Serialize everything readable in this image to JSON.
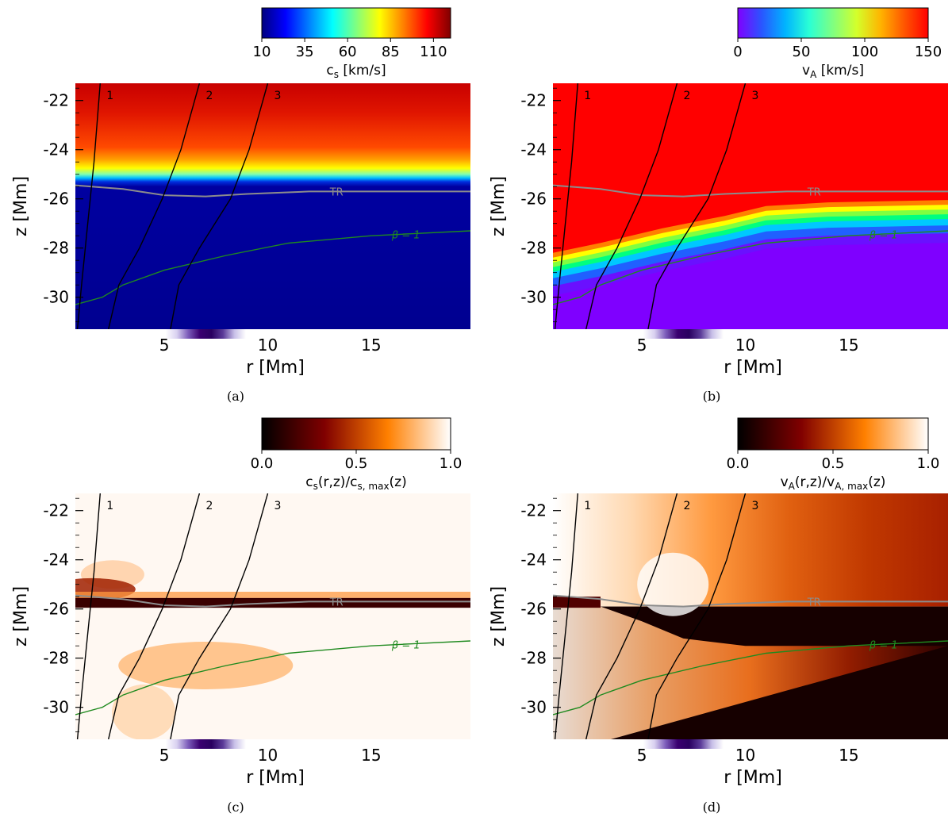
{
  "figure": {
    "panels": [
      {
        "id": "a",
        "caption": "(a)",
        "colorbar": {
          "label_main": "c",
          "label_sub": "s",
          "label_rest": " [km/s]",
          "ticks": [
            "10",
            "35",
            "60",
            "85",
            "110"
          ],
          "colormap": "jet"
        },
        "map": "cs"
      },
      {
        "id": "b",
        "caption": "(b)",
        "colorbar": {
          "label_main": "v",
          "label_sub": "A",
          "label_rest": " [km/s]",
          "ticks": [
            "0",
            "50",
            "100",
            "150"
          ],
          "colormap": "rainbow"
        },
        "map": "vA"
      },
      {
        "id": "c",
        "caption": "(c)",
        "colorbar": {
          "label_main": "c",
          "label_sub": "s",
          "label_rest": "(r,z)/c",
          "label_sub2": "s, max",
          "label_rest2": "(z)",
          "ticks": [
            "0.0",
            "0.5",
            "1.0"
          ],
          "colormap": "gist_heat"
        },
        "map": "cs_norm"
      },
      {
        "id": "d",
        "caption": "(d)",
        "colorbar": {
          "label_main": "v",
          "label_sub": "A",
          "label_rest": "(r,z)/v",
          "label_sub2": "A, max",
          "label_rest2": "(z)",
          "ticks": [
            "0.0",
            "0.5",
            "1.0"
          ],
          "colormap": "gist_heat"
        },
        "map": "vA_norm"
      }
    ],
    "axes": {
      "xlabel": "r [Mm]",
      "ylabel": "z [Mm]",
      "xticks": [
        "5",
        "10",
        "15"
      ],
      "yticks": [
        "-22",
        "-24",
        "-26",
        "-28",
        "-30"
      ],
      "xlim": [
        0.7,
        19.8
      ],
      "ylim": [
        -31.3,
        -21.3
      ]
    },
    "annotations": {
      "tr_label": "TR",
      "beta_label": "β = 1",
      "field_line_labels": [
        "1",
        "2",
        "3"
      ]
    },
    "colors": {
      "tr_line": "#8c8c8c",
      "beta_line": "#1f8a1f",
      "field_line": "#000000",
      "xtick_strip": "#4b0082"
    }
  },
  "chart_data": [
    {
      "type": "heatmap",
      "panel": "a",
      "colorbar_label": "cs [km/s]",
      "colorbar_range": [
        10,
        120
      ],
      "xlabel": "r [Mm]",
      "ylabel": "z [Mm]",
      "xlim": [
        0.7,
        19.8
      ],
      "ylim": [
        -31.3,
        -21.3
      ],
      "field_lines": [
        {
          "name": "1",
          "points": [
            [
              0.8,
              -31.3
            ],
            [
              1.0,
              -29.5
            ],
            [
              1.3,
              -27.0
            ],
            [
              1.6,
              -24.5
            ],
            [
              1.9,
              -21.3
            ]
          ]
        },
        {
          "name": "2",
          "points": [
            [
              2.3,
              -31.3
            ],
            [
              2.8,
              -29.5
            ],
            [
              3.8,
              -28.0
            ],
            [
              4.9,
              -26.0
            ],
            [
              5.8,
              -24.0
            ],
            [
              6.7,
              -21.3
            ]
          ]
        },
        {
          "name": "3",
          "points": [
            [
              5.3,
              -31.3
            ],
            [
              5.7,
              -29.5
            ],
            [
              6.7,
              -28.0
            ],
            [
              8.2,
              -26.0
            ],
            [
              9.1,
              -24.0
            ],
            [
              10.0,
              -21.3
            ]
          ]
        }
      ],
      "tr_contour": [
        [
          0.7,
          -25.45
        ],
        [
          3.0,
          -25.6
        ],
        [
          5.0,
          -25.85
        ],
        [
          7.0,
          -25.9
        ],
        [
          9.0,
          -25.8
        ],
        [
          12.0,
          -25.7
        ],
        [
          19.8,
          -25.7
        ]
      ],
      "beta_1_contour": [
        [
          0.7,
          -30.3
        ],
        [
          2.0,
          -30.0
        ],
        [
          3.0,
          -29.5
        ],
        [
          5.0,
          -28.9
        ],
        [
          8.0,
          -28.3
        ],
        [
          11.0,
          -27.8
        ],
        [
          15.0,
          -27.5
        ],
        [
          19.8,
          -27.3
        ]
      ]
    },
    {
      "type": "heatmap",
      "panel": "b",
      "colorbar_label": "vA [km/s]",
      "colorbar_range": [
        0,
        150
      ],
      "xlabel": "r [Mm]",
      "ylabel": "z [Mm]",
      "xlim": [
        0.7,
        19.8
      ],
      "ylim": [
        -31.3,
        -21.3
      ]
    },
    {
      "type": "heatmap",
      "panel": "c",
      "colorbar_label": "cs(r,z)/cs, max(z)",
      "colorbar_range": [
        0.0,
        1.0
      ],
      "xlabel": "r [Mm]",
      "ylabel": "z [Mm]",
      "xlim": [
        0.7,
        19.8
      ],
      "ylim": [
        -31.3,
        -21.3
      ]
    },
    {
      "type": "heatmap",
      "panel": "d",
      "colorbar_label": "vA(r,z)/vA, max(z)",
      "colorbar_range": [
        0.0,
        1.0
      ],
      "xlabel": "r [Mm]",
      "ylabel": "z [Mm]",
      "xlim": [
        0.7,
        19.8
      ],
      "ylim": [
        -31.3,
        -21.3
      ]
    }
  ]
}
